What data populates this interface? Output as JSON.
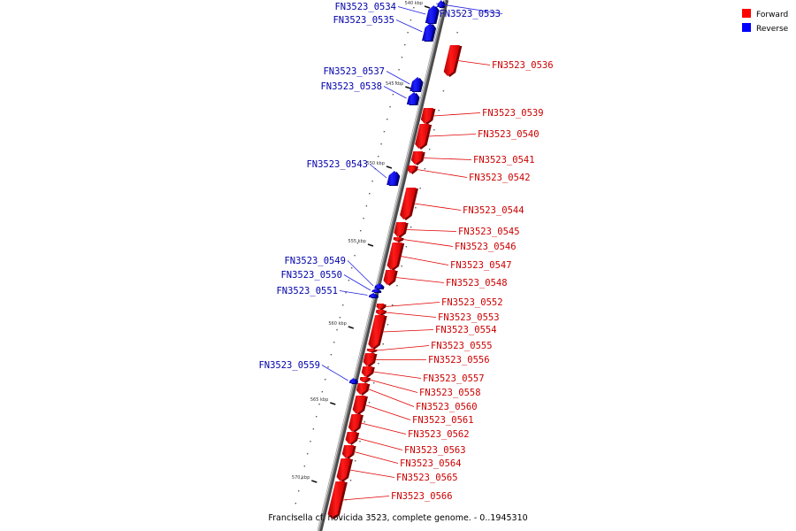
{
  "caption": "Francisella cf. novicida 3523, complete genome. - 0..1945310",
  "legend": {
    "forward": "Forward",
    "reverse": "Reverse",
    "forward_color": "#ff0000",
    "reverse_color": "#0000ff"
  },
  "colors": {
    "forward_label": "#cc0000",
    "reverse_label": "#0000aa",
    "backbone": "#8c8c8c"
  },
  "scale_marks": [
    "540 kbp",
    "545 kbp",
    "550 kbp",
    "555 kbp",
    "560 kbp",
    "565 kbp",
    "570 kbp"
  ],
  "genes": [
    {
      "id": "FN3523_0533",
      "strand": "reverse"
    },
    {
      "id": "FN3523_0534",
      "strand": "reverse"
    },
    {
      "id": "FN3523_0535",
      "strand": "reverse"
    },
    {
      "id": "FN3523_0536",
      "strand": "forward"
    },
    {
      "id": "FN3523_0537",
      "strand": "reverse"
    },
    {
      "id": "FN3523_0538",
      "strand": "reverse"
    },
    {
      "id": "FN3523_0539",
      "strand": "forward"
    },
    {
      "id": "FN3523_0540",
      "strand": "forward"
    },
    {
      "id": "FN3523_0541",
      "strand": "forward"
    },
    {
      "id": "FN3523_0542",
      "strand": "forward"
    },
    {
      "id": "FN3523_0543",
      "strand": "reverse"
    },
    {
      "id": "FN3523_0544",
      "strand": "forward"
    },
    {
      "id": "FN3523_0545",
      "strand": "forward"
    },
    {
      "id": "FN3523_0546",
      "strand": "forward"
    },
    {
      "id": "FN3523_0547",
      "strand": "forward"
    },
    {
      "id": "FN3523_0548",
      "strand": "forward"
    },
    {
      "id": "FN3523_0549",
      "strand": "reverse"
    },
    {
      "id": "FN3523_0550",
      "strand": "reverse"
    },
    {
      "id": "FN3523_0551",
      "strand": "reverse"
    },
    {
      "id": "FN3523_0552",
      "strand": "forward"
    },
    {
      "id": "FN3523_0553",
      "strand": "forward"
    },
    {
      "id": "FN3523_0554",
      "strand": "forward"
    },
    {
      "id": "FN3523_0555",
      "strand": "forward"
    },
    {
      "id": "FN3523_0556",
      "strand": "forward"
    },
    {
      "id": "FN3523_0557",
      "strand": "forward"
    },
    {
      "id": "FN3523_0558",
      "strand": "forward"
    },
    {
      "id": "FN3523_0559",
      "strand": "reverse"
    },
    {
      "id": "FN3523_0560",
      "strand": "forward"
    },
    {
      "id": "FN3523_0561",
      "strand": "forward"
    },
    {
      "id": "FN3523_0562",
      "strand": "forward"
    },
    {
      "id": "FN3523_0563",
      "strand": "forward"
    },
    {
      "id": "FN3523_0564",
      "strand": "forward"
    },
    {
      "id": "FN3523_0565",
      "strand": "forward"
    },
    {
      "id": "FN3523_0566",
      "strand": "forward"
    }
  ]
}
